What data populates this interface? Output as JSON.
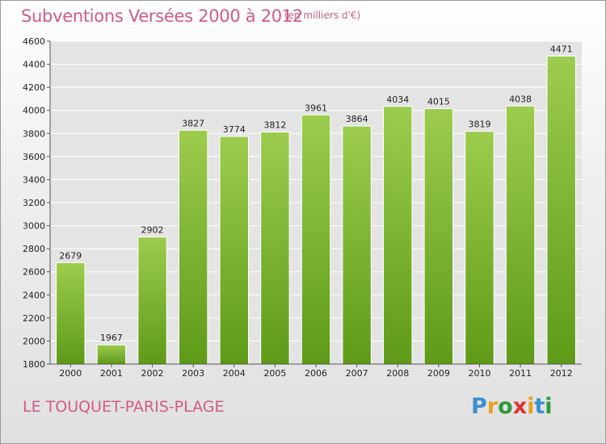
{
  "header": {
    "title": "Subventions Versées 2000 à 2012",
    "subtitle": "(en milliers d'€)"
  },
  "footer": {
    "city": "LE TOUQUET-PARIS-PLAGE",
    "logo_letters": [
      "P",
      "r",
      "o",
      "x",
      "i",
      "t",
      "i"
    ],
    "logo_colors": [
      "#3b8fd0",
      "#e8a020",
      "#2e9a3a",
      "#e03030",
      "#e8a020",
      "#3b8fd0",
      "#2e9a3a"
    ]
  },
  "chart_data": {
    "type": "bar",
    "title": "Subventions Versées 2000 à 2012",
    "xlabel": "",
    "ylabel": "",
    "categories": [
      "2000",
      "2001",
      "2002",
      "2003",
      "2004",
      "2005",
      "2006",
      "2007",
      "2008",
      "2009",
      "2010",
      "2011",
      "2012"
    ],
    "values": [
      2679,
      1967,
      2902,
      3827,
      3774,
      3812,
      3961,
      3864,
      4034,
      4015,
      3819,
      4038,
      4471
    ],
    "ylim": [
      1800,
      4600
    ],
    "yticks": [
      1800,
      2000,
      2200,
      2400,
      2600,
      2800,
      3000,
      3200,
      3400,
      3600,
      3800,
      4000,
      4200,
      4400,
      4600
    ],
    "grid": true,
    "bar_color_top": "#9dcc4e",
    "bar_color_bottom": "#5e9a18"
  }
}
